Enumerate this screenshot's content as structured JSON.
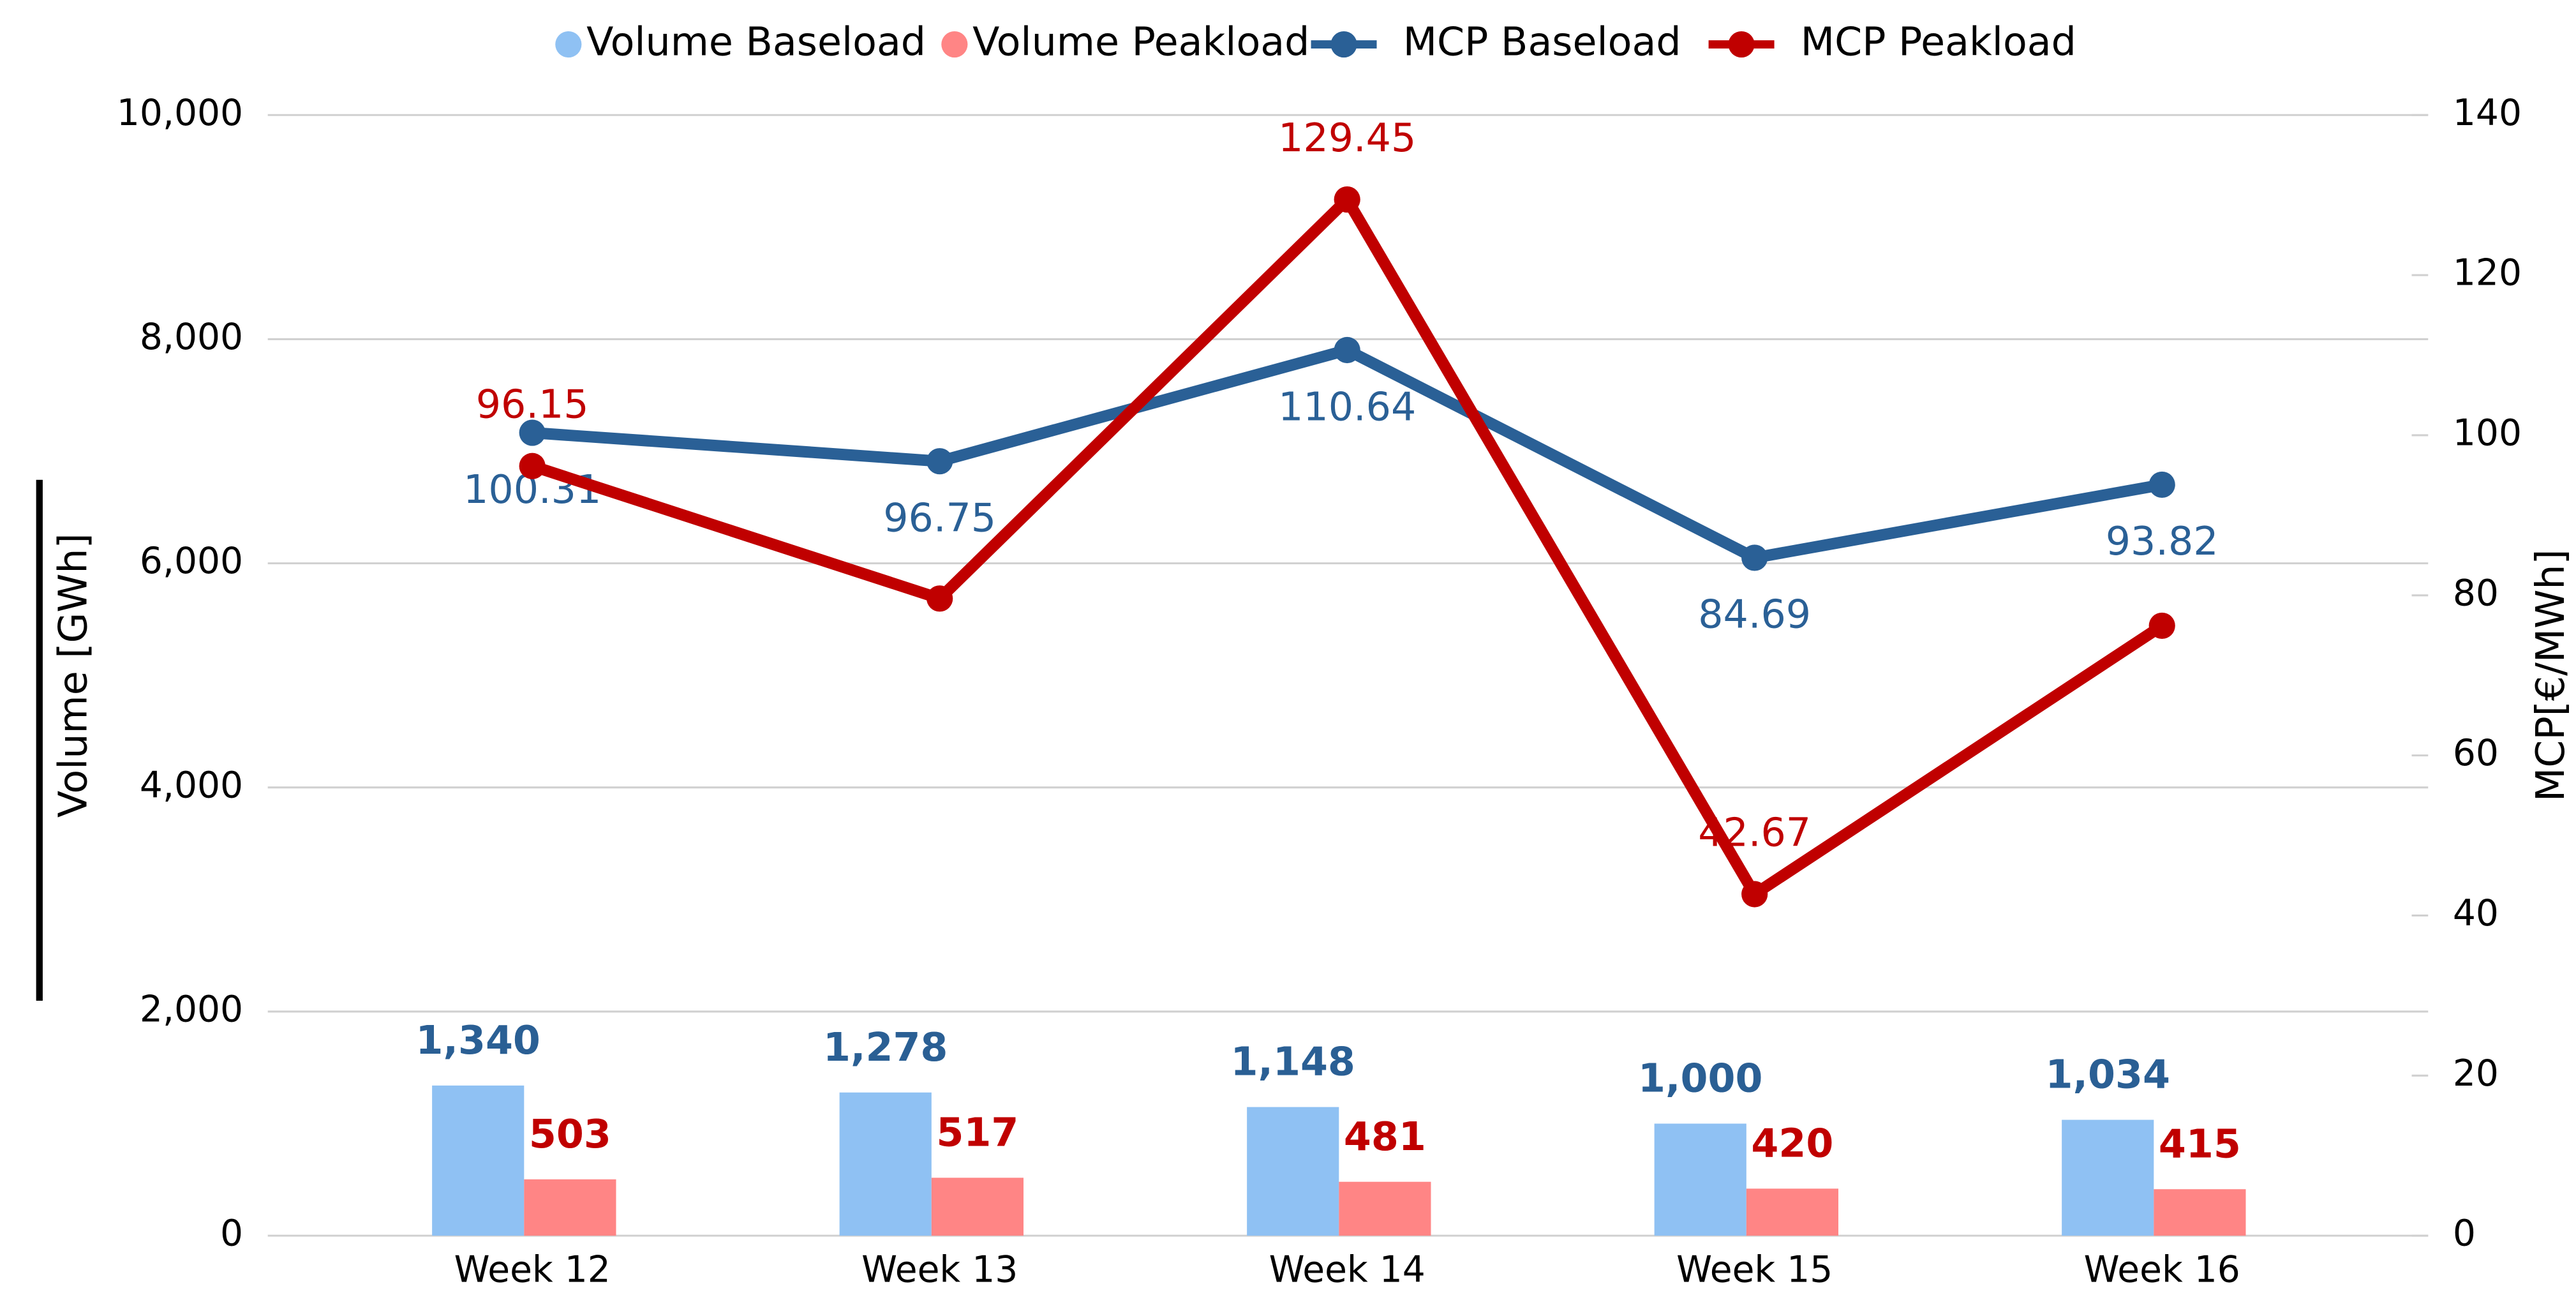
{
  "chart_data": {
    "type": "combo",
    "categories": [
      "Week 12",
      "Week 13",
      "Week 14",
      "Week 15",
      "Week 16"
    ],
    "ylabel": "Volume [GWh]",
    "y2label": "MCP[€/MWh]",
    "ylim": [
      0,
      10000
    ],
    "yticks": [
      0,
      {
        "value": 2000,
        "label": "2,000"
      },
      {
        "value": 4000,
        "label": "4,000"
      },
      {
        "value": 6000,
        "label": "6,000"
      },
      {
        "value": 8000,
        "label": "8,000"
      },
      {
        "value": 10000,
        "label": "10,000"
      }
    ],
    "y2lim": [
      0,
      140
    ],
    "y2ticks": [
      0,
      20,
      40,
      60,
      80,
      100,
      120,
      140
    ],
    "grid": true,
    "legend": "top",
    "series": [
      {
        "name": "Volume Baseload",
        "type": "bar",
        "color": "#8fc1f3",
        "label_color": "#2a5f94",
        "values": [
          1340,
          1278,
          1148,
          1000,
          1034
        ],
        "value_labels": [
          "1,340",
          "1,278",
          "1,148",
          "1,000",
          "1,034"
        ]
      },
      {
        "name": "Volume Peakload",
        "type": "bar",
        "color": "#ff8585",
        "label_color": "#c00000",
        "values": [
          503,
          517,
          481,
          420,
          415
        ],
        "value_labels": [
          "503",
          "517",
          "481",
          "420",
          "415"
        ]
      },
      {
        "name": "MCP Baseload",
        "type": "line",
        "axis": "y2",
        "color": "#2a6096",
        "values": [
          100.31,
          96.75,
          110.64,
          84.69,
          93.82
        ],
        "value_labels": [
          "100.31",
          "96.75",
          "110.64",
          "84.69",
          "93.82"
        ]
      },
      {
        "name": "MCP Peakload",
        "type": "line",
        "axis": "y2",
        "color": "#c00000",
        "values": [
          96.15,
          79.6,
          129.45,
          42.67,
          76.2
        ],
        "value_labels": [
          "96.15",
          null,
          "129.45",
          "42.67",
          null
        ]
      }
    ]
  }
}
